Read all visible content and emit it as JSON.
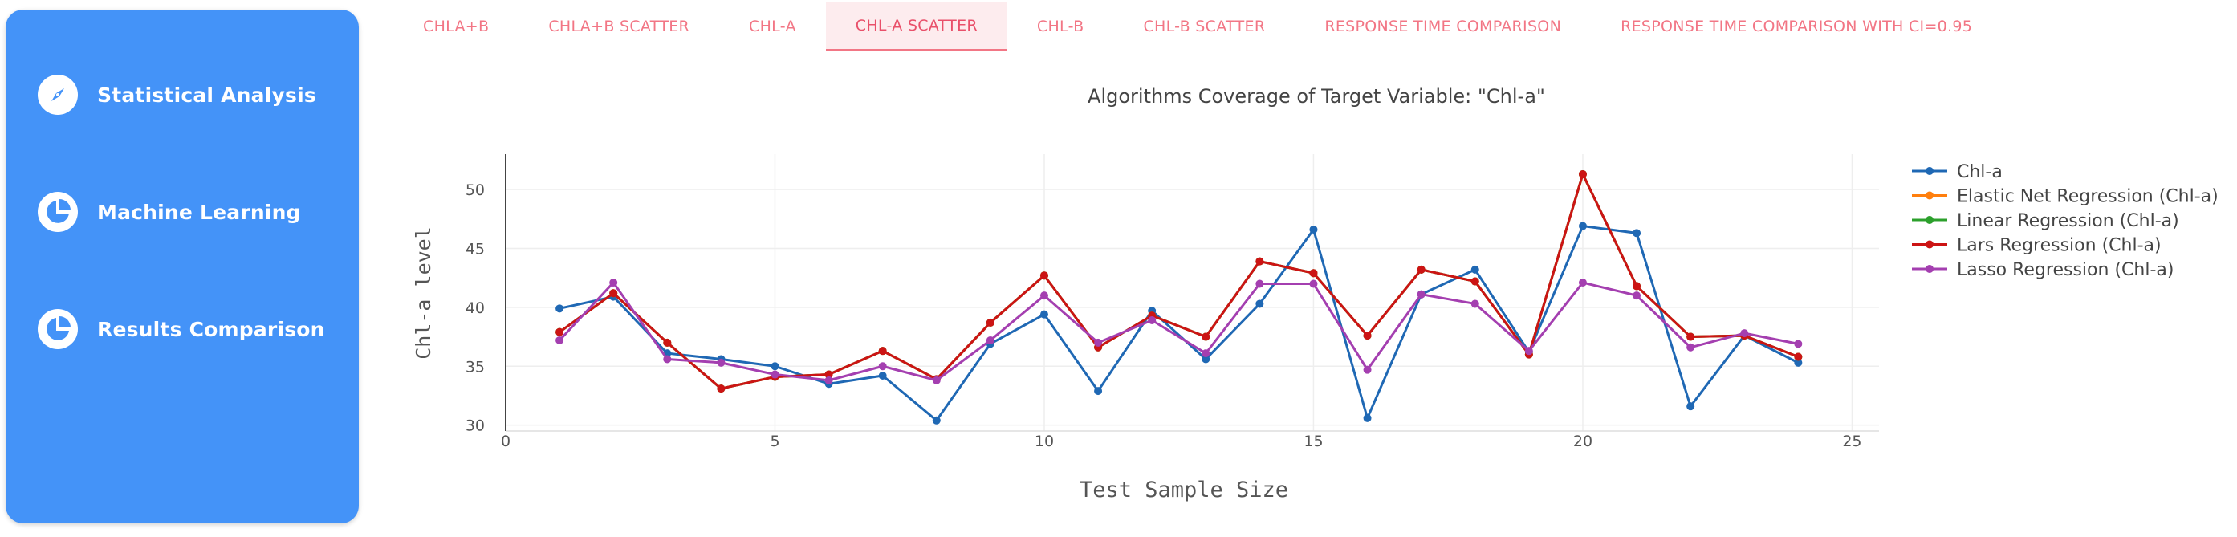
{
  "sidebar": {
    "items": [
      {
        "label": "Statistical Analysis",
        "icon": "compass-icon"
      },
      {
        "label": "Machine Learning",
        "icon": "pie-chart-icon"
      },
      {
        "label": "Results Comparison",
        "icon": "pie-chart-icon"
      }
    ]
  },
  "tabs": [
    {
      "label": "CHLA+B",
      "active": false
    },
    {
      "label": "CHLA+B SCATTER",
      "active": false
    },
    {
      "label": "CHL-A",
      "active": false
    },
    {
      "label": "CHL-A SCATTER",
      "active": true
    },
    {
      "label": "CHL-B",
      "active": false
    },
    {
      "label": "CHL-B SCATTER",
      "active": false
    },
    {
      "label": "RESPONSE TIME COMPARISON",
      "active": false
    },
    {
      "label": "RESPONSE TIME COMPARISON WITH CI=0.95",
      "active": false
    }
  ],
  "colors": {
    "sidebar": "#4493f8",
    "tab_text": "#f27685",
    "tab_active_bg": "#fdecee"
  },
  "chart_data": {
    "type": "line",
    "title": "Algorithms Coverage of Target Variable: \"Chl-a\"",
    "xlabel": "Test Sample Size",
    "ylabel": "Chl-a level",
    "xlim": [
      0,
      25.5
    ],
    "ylim": [
      29.5,
      53
    ],
    "xticks": [
      0,
      5,
      10,
      15,
      20,
      25
    ],
    "yticks": [
      30,
      35,
      40,
      45,
      50
    ],
    "grid": true,
    "legend": "right",
    "x": [
      1,
      2,
      3,
      4,
      5,
      6,
      7,
      8,
      9,
      10,
      11,
      12,
      13,
      14,
      15,
      16,
      17,
      18,
      19,
      20,
      21,
      22,
      23,
      24
    ],
    "series": [
      {
        "name": "Chl-a",
        "color": "#1f68b4",
        "values": [
          39.9,
          40.9,
          36.1,
          35.6,
          35.0,
          33.5,
          34.2,
          30.4,
          36.9,
          39.4,
          32.9,
          39.7,
          35.6,
          40.3,
          46.6,
          30.6,
          41.1,
          43.2,
          36.2,
          46.9,
          46.3,
          31.6,
          37.6,
          35.3
        ]
      },
      {
        "name": "Elastic Net Regression (Chl-a)",
        "color": "#ff7f0e",
        "values": [
          37.9,
          41.2,
          37.0,
          33.1,
          34.1,
          34.3,
          36.3,
          33.9,
          38.7,
          42.7,
          36.6,
          39.3,
          37.5,
          43.9,
          42.9,
          37.6,
          43.2,
          42.2,
          36.0,
          51.3,
          41.8,
          37.5,
          37.6,
          35.8
        ]
      },
      {
        "name": "Linear Regression (Chl-a)",
        "color": "#2ca02c",
        "values": [
          37.9,
          41.2,
          37.0,
          33.1,
          34.1,
          34.3,
          36.3,
          33.9,
          38.7,
          42.7,
          36.6,
          39.3,
          37.5,
          43.9,
          42.9,
          37.6,
          43.2,
          42.2,
          36.0,
          51.3,
          41.8,
          37.5,
          37.6,
          35.8
        ]
      },
      {
        "name": "Lars Regression (Chl-a)",
        "color": "#cc1414",
        "values": [
          37.9,
          41.2,
          37.0,
          33.1,
          34.1,
          34.3,
          36.3,
          33.9,
          38.7,
          42.7,
          36.6,
          39.3,
          37.5,
          43.9,
          42.9,
          37.6,
          43.2,
          42.2,
          36.0,
          51.3,
          41.8,
          37.5,
          37.6,
          35.8
        ]
      },
      {
        "name": "Lasso Regression (Chl-a)",
        "color": "#a43fb0",
        "values": [
          37.2,
          42.1,
          35.6,
          35.3,
          34.3,
          33.8,
          35.0,
          33.8,
          37.2,
          41.0,
          37.0,
          38.9,
          36.1,
          42.0,
          42.0,
          34.7,
          41.1,
          40.3,
          36.3,
          42.1,
          41.0,
          36.6,
          37.8,
          36.9
        ]
      }
    ]
  }
}
